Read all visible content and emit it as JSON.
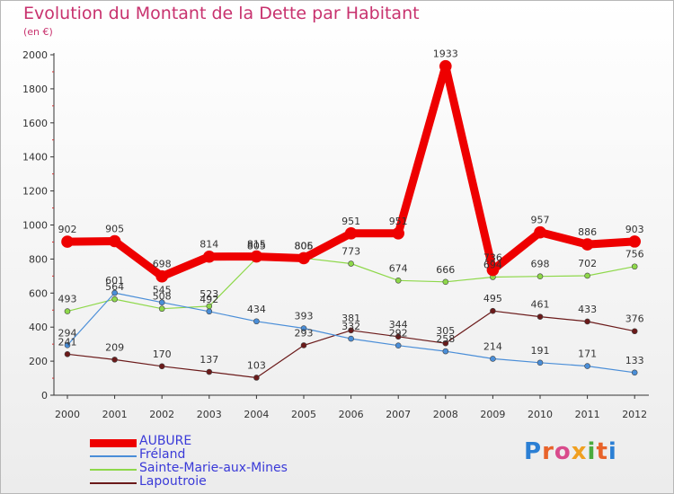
{
  "header": {
    "title": "Evolution du Montant de la Dette par Habitant",
    "unit": "(en €)"
  },
  "brand": {
    "text": "Proxiti",
    "colors": [
      "#2b7fd4",
      "#e8632a",
      "#d94b8c",
      "#f0a020",
      "#4aab3e",
      "#e8632a",
      "#2b7fd4"
    ]
  },
  "chart_data": {
    "type": "line",
    "title": "Evolution du Montant de la Dette par Habitant",
    "ylabel": "(en €)",
    "xlabel": "",
    "ylim": [
      0,
      2000
    ],
    "yticks": [
      0,
      200,
      400,
      600,
      800,
      1000,
      1200,
      1400,
      1600,
      1800,
      2000
    ],
    "grid": false,
    "legend_position": "bottom-left",
    "categories": [
      "2000",
      "2001",
      "2002",
      "2003",
      "2004",
      "2005",
      "2006",
      "2007",
      "2008",
      "2009",
      "2010",
      "2011",
      "2012"
    ],
    "series": [
      {
        "name": "Lapoutroie",
        "color": "#6b1a1a",
        "values": [
          241,
          209,
          170,
          137,
          103,
          293,
          381,
          344,
          305,
          495,
          461,
          433,
          376
        ]
      },
      {
        "name": "Sainte-Marie-aux-Mines",
        "color": "#8ed84a",
        "values": [
          493,
          564,
          508,
          523,
          805,
          806,
          773,
          674,
          666,
          694,
          698,
          702,
          756
        ]
      },
      {
        "name": "Fréland",
        "color": "#4a8ed8",
        "values": [
          294,
          601,
          545,
          492,
          434,
          393,
          332,
          292,
          258,
          214,
          191,
          171,
          133
        ]
      },
      {
        "name": "AUBURE",
        "color": "#ee0000",
        "values": [
          902,
          905,
          698,
          814,
          815,
          805,
          951,
          951,
          1933,
          736,
          957,
          886,
          903
        ]
      }
    ],
    "legend_order": [
      "AUBURE",
      "Fréland",
      "Sainte-Marie-aux-Mines",
      "Lapoutroie"
    ]
  }
}
